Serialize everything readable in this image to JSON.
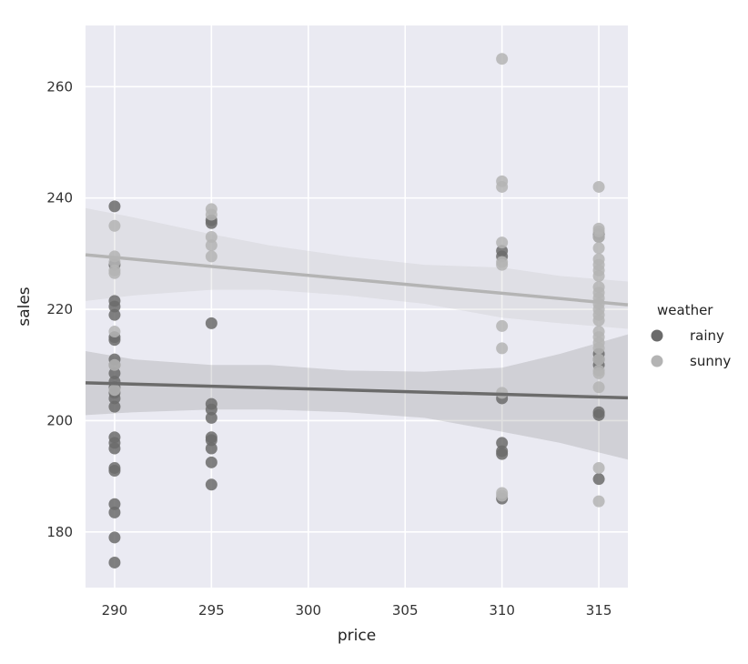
{
  "chart_data": {
    "type": "scatter",
    "xlabel": "price",
    "ylabel": "sales",
    "xlim": [
      288.5,
      316.5
    ],
    "ylim": [
      170,
      271
    ],
    "xticks": [
      290,
      295,
      300,
      305,
      310,
      315
    ],
    "yticks": [
      180,
      200,
      220,
      240,
      260
    ],
    "grid": true,
    "legend": {
      "title": "weather",
      "placement": "right"
    },
    "series": [
      {
        "name": "rainy",
        "color": "#6b6b6b",
        "points": [
          [
            290,
            238.5
          ],
          [
            290,
            228
          ],
          [
            290,
            221.5
          ],
          [
            290,
            220.5
          ],
          [
            290,
            219
          ],
          [
            290,
            215
          ],
          [
            290,
            214.5
          ],
          [
            290,
            211
          ],
          [
            290,
            210
          ],
          [
            290,
            208.5
          ],
          [
            290,
            207
          ],
          [
            290,
            206
          ],
          [
            290,
            205
          ],
          [
            290,
            204
          ],
          [
            290,
            202.5
          ],
          [
            290,
            197
          ],
          [
            290,
            196
          ],
          [
            290,
            195
          ],
          [
            290,
            191.5
          ],
          [
            290,
            191
          ],
          [
            290,
            185
          ],
          [
            290,
            183.5
          ],
          [
            290,
            179
          ],
          [
            290,
            174.5
          ],
          [
            295,
            236
          ],
          [
            295,
            235.5
          ],
          [
            295,
            217.5
          ],
          [
            295,
            203
          ],
          [
            295,
            202
          ],
          [
            295,
            200.5
          ],
          [
            295,
            197
          ],
          [
            295,
            196.5
          ],
          [
            295,
            195
          ],
          [
            295,
            192.5
          ],
          [
            295,
            188.5
          ],
          [
            310,
            230.5
          ],
          [
            310,
            229.5
          ],
          [
            310,
            204
          ],
          [
            310,
            196
          ],
          [
            310,
            194.5
          ],
          [
            310,
            194
          ],
          [
            310,
            186
          ],
          [
            315,
            233.5
          ],
          [
            315,
            233
          ],
          [
            315,
            212
          ],
          [
            315,
            211
          ],
          [
            315,
            210
          ],
          [
            315,
            201.5
          ],
          [
            315,
            201
          ],
          [
            315,
            189.5
          ]
        ],
        "trend": {
          "x": [
            288.5,
            316.5
          ],
          "y": [
            206.8,
            204.1
          ]
        },
        "ci": {
          "x": [
            288.5,
            291,
            295,
            298,
            302,
            306,
            310,
            313,
            316.5
          ],
          "upper": [
            212.5,
            211,
            210,
            210,
            209,
            208.8,
            209.5,
            212,
            215.5
          ],
          "lower": [
            201,
            201.5,
            202,
            202,
            201.5,
            200.5,
            198,
            196,
            193
          ]
        }
      },
      {
        "name": "sunny",
        "color": "#b4b4b4",
        "points": [
          [
            290,
            235
          ],
          [
            290,
            229.5
          ],
          [
            290,
            228.5
          ],
          [
            290,
            227
          ],
          [
            290,
            226.5
          ],
          [
            290,
            216
          ],
          [
            290,
            210
          ],
          [
            290,
            205.5
          ],
          [
            295,
            238
          ],
          [
            295,
            237
          ],
          [
            295,
            233
          ],
          [
            295,
            231.5
          ],
          [
            295,
            229.5
          ],
          [
            310,
            265
          ],
          [
            310,
            243
          ],
          [
            310,
            242
          ],
          [
            310,
            232
          ],
          [
            310,
            228.5
          ],
          [
            310,
            228
          ],
          [
            310,
            217
          ],
          [
            310,
            213
          ],
          [
            310,
            205
          ],
          [
            310,
            187
          ],
          [
            310,
            186.5
          ],
          [
            315,
            242
          ],
          [
            315,
            234.5
          ],
          [
            315,
            234
          ],
          [
            315,
            233
          ],
          [
            315,
            231
          ],
          [
            315,
            229
          ],
          [
            315,
            228
          ],
          [
            315,
            227
          ],
          [
            315,
            226
          ],
          [
            315,
            224
          ],
          [
            315,
            223
          ],
          [
            315,
            222
          ],
          [
            315,
            221
          ],
          [
            315,
            220
          ],
          [
            315,
            219
          ],
          [
            315,
            218
          ],
          [
            315,
            216
          ],
          [
            315,
            215
          ],
          [
            315,
            214
          ],
          [
            315,
            213
          ],
          [
            315,
            211
          ],
          [
            315,
            209
          ],
          [
            315,
            208.5
          ],
          [
            315,
            206
          ],
          [
            315,
            191.5
          ],
          [
            315,
            185.5
          ]
        ],
        "trend": {
          "x": [
            288.5,
            316.5
          ],
          "y": [
            229.8,
            220.8
          ]
        },
        "ci": {
          "x": [
            288.5,
            291,
            295,
            298,
            302,
            306,
            310,
            313,
            316.5
          ],
          "upper": [
            238.2,
            236.5,
            233.5,
            231.5,
            229.5,
            228,
            227.5,
            226,
            225
          ],
          "lower": [
            221.5,
            222.5,
            223.5,
            223.5,
            222.5,
            221,
            218.5,
            217.5,
            216.5
          ]
        }
      }
    ]
  }
}
